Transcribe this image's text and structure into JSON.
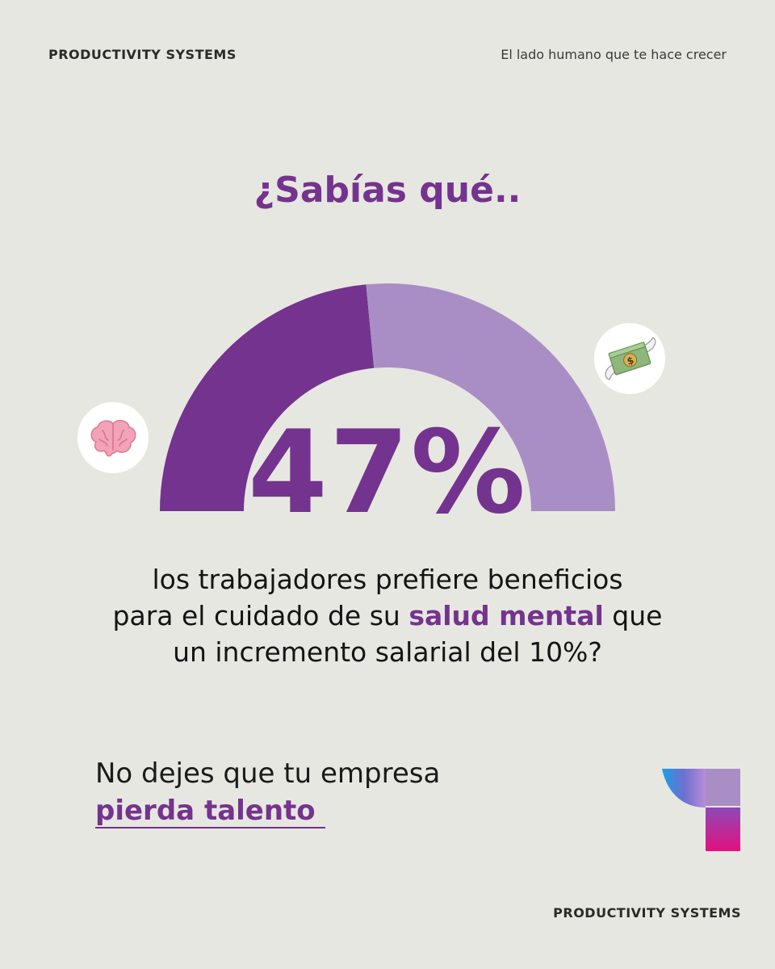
{
  "header": {
    "brand": "PRODUCTIVITY SYSTEMS",
    "tagline": "El lado humano que te hace crecer"
  },
  "heading": "¿Sabías qué..",
  "chart_data": {
    "type": "pie",
    "style": "half-donut",
    "categories": [
      "salud mental",
      "incremento salarial"
    ],
    "values": [
      47,
      53
    ],
    "unit": "%",
    "data_label": "47%",
    "colors": [
      "#74338e",
      "#a98ec5"
    ]
  },
  "icons": {
    "left": "brain-emoji",
    "right": "money-with-wings-emoji"
  },
  "statement": {
    "line1": "los trabajadores prefiere beneficios",
    "line2_before": "para el cuidado de su ",
    "line2_highlight": "salud mental",
    "line2_after": " que",
    "line3": "un incremento salarial del 10%?"
  },
  "cta": {
    "line1": "No dejes que tu empresa",
    "highlight": "pierda talento"
  },
  "footer": {
    "brand": "PRODUCTIVITY SYSTEMS"
  },
  "colors": {
    "background": "#e7e7e1",
    "accent": "#74338e",
    "accent_light": "#a98ec5"
  }
}
